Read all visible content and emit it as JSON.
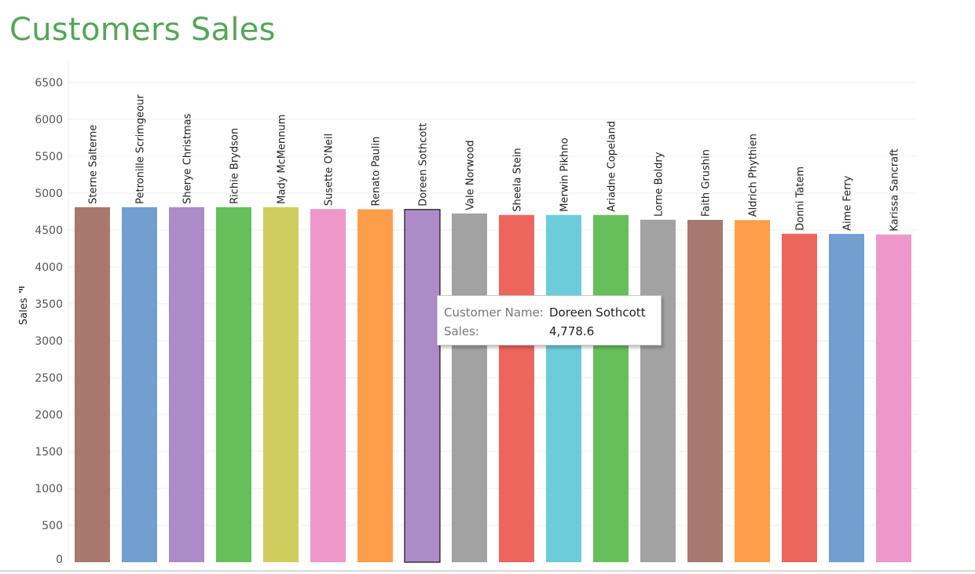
{
  "title": "Customers Sales",
  "tooltip": {
    "name_key": "Customer Name:",
    "name_value": "Doreen Sothcott",
    "sales_key": "Sales:",
    "sales_value": "4,778.6"
  },
  "chart_data": {
    "type": "bar",
    "title": "Customers Sales",
    "xlabel": "",
    "ylabel": "Sales",
    "ylim": [
      0,
      6500
    ],
    "yticks": [
      0,
      500,
      1000,
      1500,
      2000,
      2500,
      3000,
      3500,
      4000,
      4500,
      5000,
      5500,
      6000,
      6500
    ],
    "grid": true,
    "categories": [
      "Sterne Salterne",
      "Petronille Scrimgeour",
      "Sherye Christmas",
      "Richie Brydson",
      "Mady McMennum",
      "Susette O'Neil",
      "Renato Paulin",
      "Doreen Sothcott",
      "Vale Norwood",
      "Sheela Stein",
      "Merwin Pikhno",
      "Ariadne Copeland",
      "Lorne Boldry",
      "Faith Grushin",
      "Aldrich Phythien",
      "Donni Tatem",
      "Aime Ferry",
      "Karissa Sancraft"
    ],
    "values": [
      4810,
      4810,
      4810,
      4810,
      4810,
      4785,
      4782,
      4778.6,
      4725,
      4705,
      4705,
      4705,
      4640,
      4638,
      4635,
      4450,
      4448,
      4440
    ],
    "colors": [
      "#a8786e",
      "#729fcf",
      "#ad8bc9",
      "#67bf5c",
      "#cfcd5e",
      "#ed97ca",
      "#ff9e4a",
      "#ad8bc9",
      "#a2a2a2",
      "#ed665d",
      "#6dccda",
      "#67bf5c",
      "#a2a2a2",
      "#a8786e",
      "#ff9e4a",
      "#ed665d",
      "#729fcf",
      "#ed97ca"
    ],
    "highlighted": "Doreen Sothcott"
  }
}
